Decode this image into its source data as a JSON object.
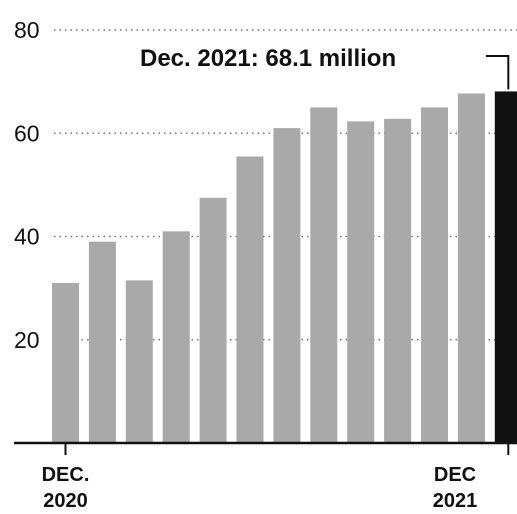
{
  "chart_data": {
    "type": "bar",
    "categories": [
      "DEC. 2020",
      "",
      "",
      "",
      "",
      "",
      "",
      "",
      "",
      "",
      "",
      "",
      "DEC. 2021"
    ],
    "values": [
      31,
      39,
      31.5,
      41,
      47.5,
      55.5,
      61,
      65,
      62.3,
      62.8,
      65,
      67.7,
      68.1
    ],
    "highlight_index": 12,
    "colors": {
      "bar": "#a9a9a9",
      "highlight": "#111111"
    },
    "ylim": [
      0,
      80
    ],
    "yticks": [
      "20",
      "40",
      "60",
      "80"
    ],
    "ytick_values": [
      20,
      40,
      60,
      80
    ],
    "xtick_labels": [
      {
        "index": 0,
        "line1": "DEC.",
        "line2": "2020"
      },
      {
        "index": 12,
        "line1": "DEC",
        "line2": "2021"
      }
    ],
    "annotation": "Dec. 2021: 68.1 million",
    "grid": true
  }
}
